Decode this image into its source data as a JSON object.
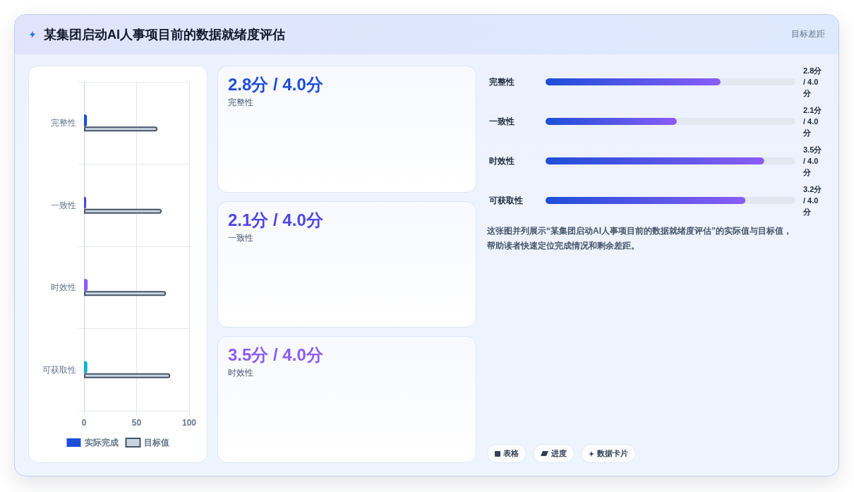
{
  "chart_data": [
    {
      "type": "bar",
      "orientation": "horizontal",
      "title": "某集团启动AI人事项目前的数据就绪度评估",
      "categories": [
        "完整性",
        "一致性",
        "时效性",
        "可获取性"
      ],
      "series": [
        {
          "name": "实际完成",
          "color": "#1d4ed8",
          "colors": [
            "#1d4ed8",
            "#4f46e5",
            "#8b5cf6",
            "#06b6d4"
          ],
          "values": [
            2.8,
            2.1,
            3.5,
            3.2
          ]
        },
        {
          "name": "目标值",
          "color": "#cbd5e1",
          "values": [
            70,
            74,
            78,
            82
          ]
        }
      ],
      "xlim": [
        0,
        100
      ],
      "xticks": [
        0,
        50,
        100
      ],
      "grid": true,
      "legend": "bottom"
    },
    {
      "type": "other",
      "annotations": [
        "2.8分 / 4.0分",
        "完整性",
        "2.1分 / 4.0分",
        "一致性",
        "3.5分 / 4.0分",
        "时效性"
      ],
      "colors": [
        "#1d4ed8",
        "#4f46e5",
        "#8b5cf6"
      ]
    },
    {
      "type": "bar",
      "orientation": "horizontal",
      "subtitle": "目标差距",
      "categories": [
        "完整性",
        "一致性",
        "时效性",
        "可获取性"
      ],
      "values": [
        2.8,
        2.1,
        3.5,
        3.2
      ],
      "value_labels": [
        "2.8分 / 4.0分",
        "2.1分 / 4.0分",
        "3.5分 / 4.0分",
        "3.2分 / 4.0分"
      ],
      "color": "#1d4ed8",
      "xlim": [
        0,
        4
      ],
      "tick_labels": "y",
      "annotations": [
        "这张图并列展示“某集团启动AI人事项目前的数据就绪度评估”的实际值与目标值，帮助读者快速定位完成情况和剩余差距。",
        "表格",
        "进度",
        "数据卡片"
      ]
    }
  ]
}
